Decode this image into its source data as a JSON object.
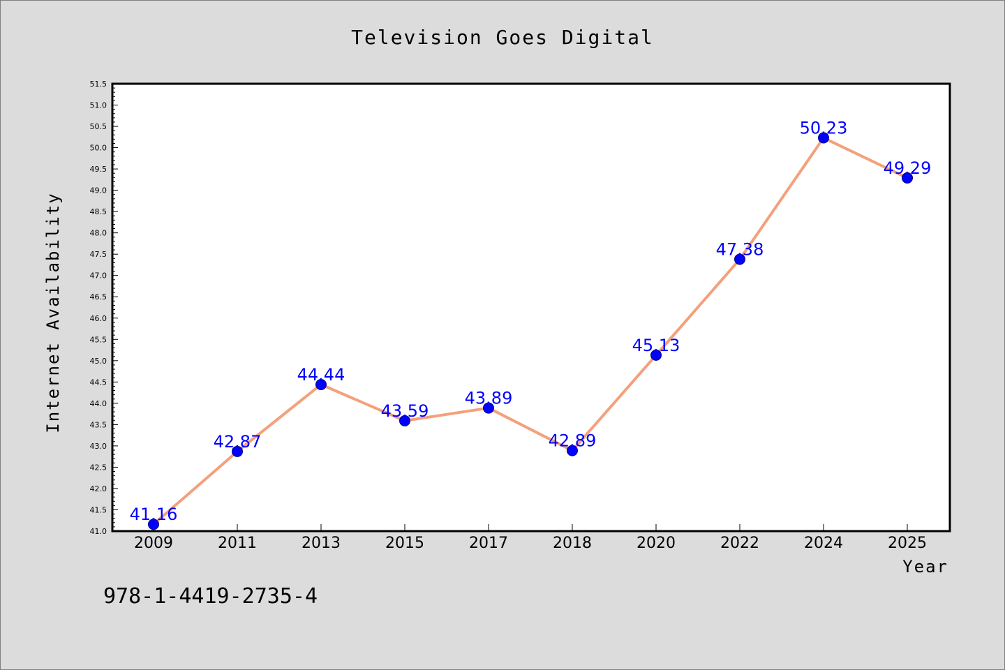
{
  "colors": {
    "background": "#dcdcdc",
    "plot_background": "#ffffff",
    "line": "#f4a07c",
    "marker": "#0000ff",
    "data_label": "#0000ff",
    "axis": "#000000"
  },
  "footer_text": "978-1-4419-2735-4",
  "chart_data": {
    "type": "line",
    "title": "Television Goes Digital",
    "xlabel": "Year",
    "ylabel": "Internet Availability",
    "categories": [
      "2009",
      "2011",
      "2013",
      "2015",
      "2017",
      "2018",
      "2020",
      "2022",
      "2024",
      "2025"
    ],
    "series": [
      {
        "values": [
          41.16,
          42.87,
          44.44,
          43.59,
          43.89,
          42.89,
          45.13,
          47.38,
          50.23,
          49.29
        ]
      }
    ],
    "data_labels": [
      "41.16",
      "42.87",
      "44.44",
      "43.59",
      "43.89",
      "42.89",
      "45.13",
      "47.38",
      "50.23",
      "49.29"
    ],
    "ylim": [
      41.0,
      51.5
    ],
    "yticks": [
      "41.0",
      "41.5",
      "42.0",
      "42.5",
      "43.0",
      "43.5",
      "44.0",
      "44.5",
      "45.0",
      "45.5",
      "46.0",
      "46.5",
      "47.0",
      "47.5",
      "48.0",
      "48.5",
      "49.0",
      "49.5",
      "50.0",
      "50.5",
      "51.0",
      "51.5"
    ],
    "grid": false,
    "legend": "none"
  }
}
